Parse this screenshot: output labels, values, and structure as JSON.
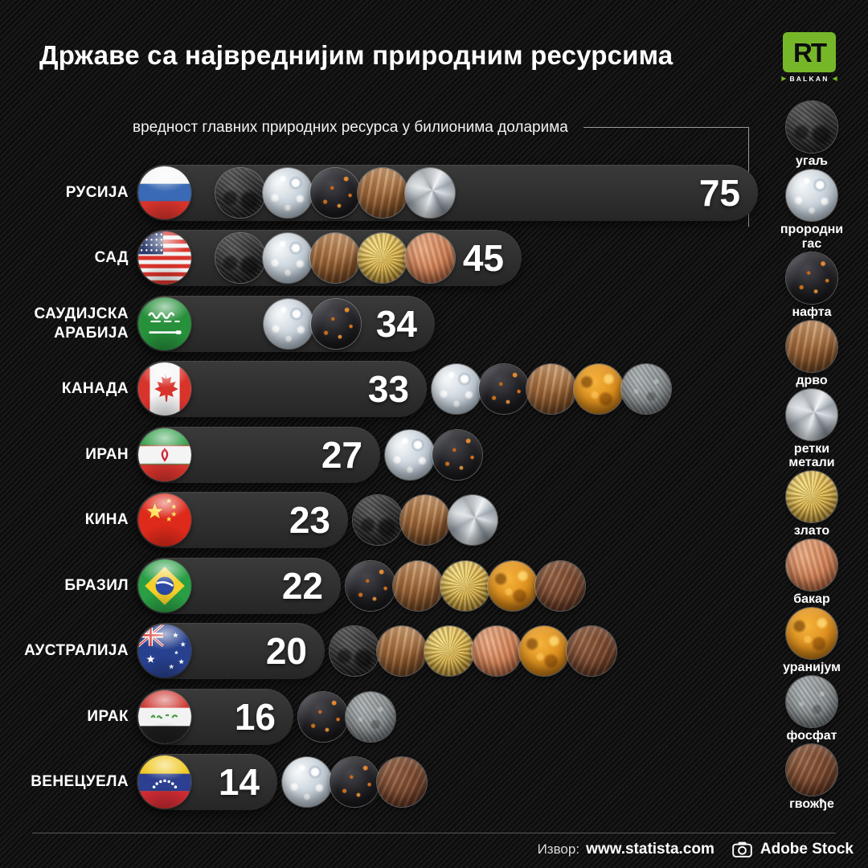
{
  "title": "Државе са највреднијим природним ресурсима",
  "subtitle": "вредност главних природних ресурса у билионима доларима",
  "logo": {
    "brand": "RT",
    "region": "BALKAN",
    "accent_green": "#76b72a"
  },
  "legend": [
    {
      "id": "ugalj",
      "label": "угаљ"
    },
    {
      "id": "gas",
      "label": "прородни гас"
    },
    {
      "id": "nafta",
      "label": "нафта"
    },
    {
      "id": "drvo",
      "label": "дрво"
    },
    {
      "id": "retki",
      "label": "ретки метали"
    },
    {
      "id": "zlato",
      "label": "злато"
    },
    {
      "id": "bakar",
      "label": "бакар"
    },
    {
      "id": "uranijum",
      "label": "уранијум"
    },
    {
      "id": "fosfat",
      "label": "фосфат"
    },
    {
      "id": "gvozdje",
      "label": "гвожђе"
    }
  ],
  "chart_data": {
    "type": "bar",
    "title": "Државе са највреднијим природним ресурсима",
    "xlabel": "вредност главних природних ресурса у билионима доларима",
    "unit": "билиони долара",
    "xlim": [
      0,
      80
    ],
    "legend_position": "right",
    "categories": [
      "РУСИЈА",
      "САД",
      "САУДИЈСКА АРАБИЈА",
      "КАНАДА",
      "ИРАН",
      "КИНА",
      "БРАЗИЛ",
      "АУСТРАЛИЈА",
      "ИРАК",
      "ВЕНЕЦУЕЛА"
    ],
    "values": [
      75,
      45,
      34,
      33,
      27,
      23,
      22,
      20,
      16,
      14
    ],
    "countries": [
      {
        "id": "russia",
        "name": "РУСИЈА",
        "value": 75,
        "flag": "flag-russia-icon",
        "resources": [
          "ugalj",
          "gas",
          "nafta",
          "drvo",
          "retki"
        ],
        "icons_placement": "inside-start"
      },
      {
        "id": "usa",
        "name": "САД",
        "value": 45,
        "flag": "flag-usa-icon",
        "resources": [
          "ugalj",
          "gas",
          "drvo",
          "zlato",
          "bakar"
        ],
        "icons_placement": "inside-start"
      },
      {
        "id": "saudi-arabia",
        "name": "САУДИЈСКА АРАБИЈА",
        "value": 34,
        "flag": "flag-saudi-arabia-icon",
        "resources": [
          "gas",
          "nafta"
        ],
        "icons_placement": "inside-end"
      },
      {
        "id": "canada",
        "name": "КАНАДА",
        "value": 33,
        "flag": "flag-canada-icon",
        "resources": [
          "gas",
          "nafta",
          "drvo",
          "uranijum",
          "fosfat"
        ],
        "icons_placement": "after-bar"
      },
      {
        "id": "iran",
        "name": "ИРАН",
        "value": 27,
        "flag": "flag-iran-icon",
        "resources": [
          "gas",
          "nafta"
        ],
        "icons_placement": "after-bar"
      },
      {
        "id": "china",
        "name": "КИНА",
        "value": 23,
        "flag": "flag-china-icon",
        "resources": [
          "ugalj",
          "drvo",
          "retki"
        ],
        "icons_placement": "after-bar"
      },
      {
        "id": "brazil",
        "name": "БРАЗИЛ",
        "value": 22,
        "flag": "flag-brazil-icon",
        "resources": [
          "nafta",
          "drvo",
          "zlato",
          "uranijum",
          "gvozdje"
        ],
        "icons_placement": "after-bar"
      },
      {
        "id": "australia",
        "name": "АУСТРАЛИЈА",
        "value": 20,
        "flag": "flag-australia-icon",
        "resources": [
          "ugalj",
          "drvo",
          "zlato",
          "bakar",
          "uranijum",
          "gvozdje"
        ],
        "icons_placement": "after-bar"
      },
      {
        "id": "iraq",
        "name": "ИРАК",
        "value": 16,
        "flag": "flag-iraq-icon",
        "resources": [
          "nafta",
          "fosfat"
        ],
        "icons_placement": "after-bar"
      },
      {
        "id": "venezuela",
        "name": "ВЕНЕЦУЕЛА",
        "value": 14,
        "flag": "flag-venezuela-icon",
        "resources": [
          "gas",
          "nafta",
          "gvozdje"
        ],
        "icons_placement": "after-bar"
      }
    ]
  },
  "footer": {
    "source_label": "Извор:",
    "source": "www.statista.com",
    "camera_icon": "camera-icon",
    "credit": "Adobe Stock"
  },
  "colors": {
    "background": "#101010",
    "bar": "#2e2e2e",
    "accent_green": "#76b72a",
    "text": "#ffffff"
  }
}
